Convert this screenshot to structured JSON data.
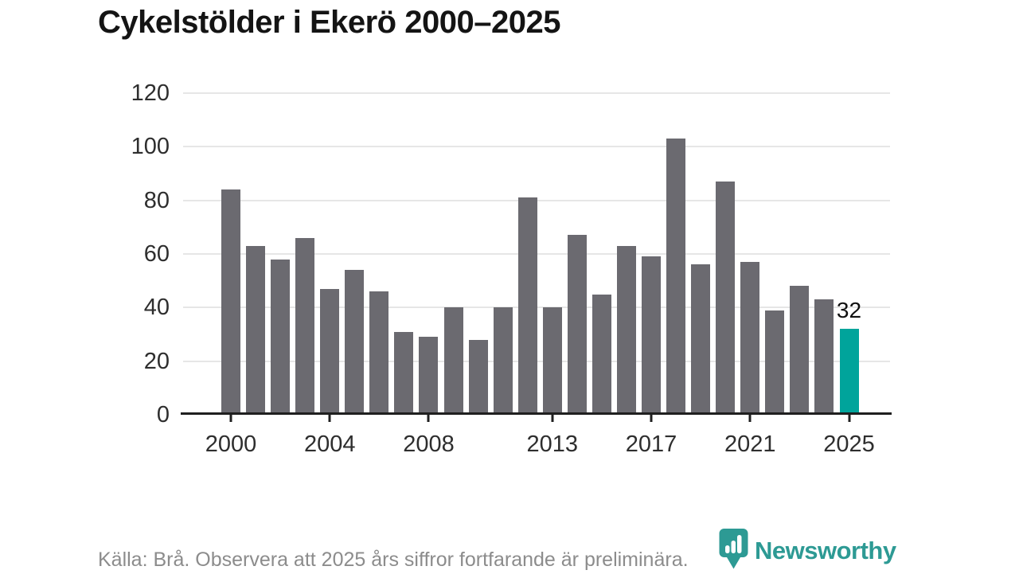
{
  "title": "Cykelstölder i Ekerö 2000–2025",
  "source_note": "Källa: Brå. Observera att 2025 års siffror fortfarande är preliminära.",
  "logo": {
    "text": "Newsworthy",
    "icon": "newsworthy-pin-barchart-icon",
    "color": "#2d9a94"
  },
  "annotation": {
    "text": "32",
    "year": 2025
  },
  "colors": {
    "bar": "#6b6a70",
    "highlight": "#00a49b",
    "grid": "#e6e6e6",
    "axis": "#1f1f1f",
    "title_text": "#141414",
    "axis_label": "#2e2e2e",
    "source_text": "#8c8c8c"
  },
  "chart_data": {
    "type": "bar",
    "title": "Cykelstölder i Ekerö 2000–2025",
    "x": [
      2000,
      2001,
      2002,
      2003,
      2004,
      2005,
      2006,
      2007,
      2008,
      2009,
      2010,
      2011,
      2012,
      2013,
      2014,
      2015,
      2016,
      2017,
      2018,
      2019,
      2020,
      2021,
      2022,
      2023,
      2024,
      2025
    ],
    "values": [
      84,
      63,
      58,
      66,
      47,
      54,
      46,
      31,
      29,
      40,
      28,
      40,
      81,
      40,
      67,
      45,
      63,
      59,
      103,
      56,
      87,
      57,
      39,
      48,
      43,
      32
    ],
    "highlight_year": 2025,
    "highlight_value_label": "32",
    "y_ticks": [
      0,
      20,
      40,
      60,
      80,
      100,
      120
    ],
    "x_ticks": [
      2000,
      2004,
      2008,
      2013,
      2017,
      2021,
      2025
    ],
    "ylim": [
      0,
      120
    ],
    "grid": true,
    "xlabel": "",
    "ylabel": "",
    "legend": null
  }
}
